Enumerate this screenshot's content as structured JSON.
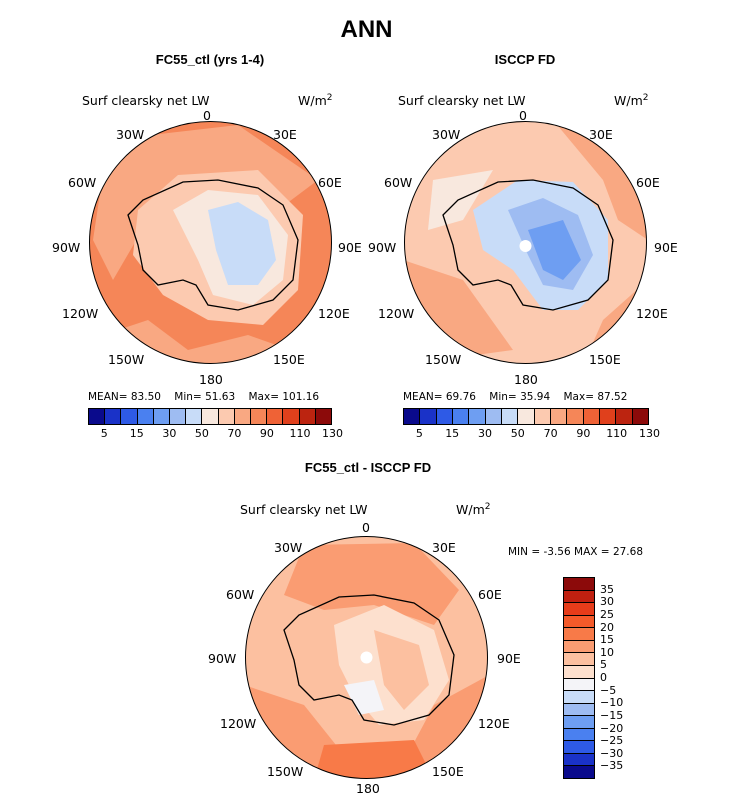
{
  "title": "ANN",
  "panels": [
    {
      "title": "FC55_ctl (yrs 1-4)",
      "variable": "Surf clearsky net LW",
      "units": "W/m",
      "units_exp": "2",
      "stats": {
        "mean_label": "MEAN=",
        "mean": "83.50",
        "min_label": "Min=",
        "min": "51.63",
        "max_label": "Max=",
        "max": "101.16"
      }
    },
    {
      "title": "ISCCP FD",
      "variable": "Surf clearsky net LW",
      "units": "W/m",
      "units_exp": "2",
      "stats": {
        "mean_label": "MEAN=",
        "mean": "69.76",
        "min_label": "Min=",
        "min": "35.94",
        "max_label": "Max=",
        "max": "87.52"
      }
    },
    {
      "title": "FC55_ctl - ISCCP FD",
      "variable": "Surf clearsky net LW",
      "units": "W/m",
      "units_exp": "2",
      "stats": {
        "min_label": "MIN =",
        "min": "-3.56",
        "max_label": "MAX =",
        "max": "27.68"
      }
    }
  ],
  "lon_labels": {
    "n": "0",
    "ne1": "30E",
    "ne2": "60E",
    "e": "90E",
    "se1": "120E",
    "se2": "150E",
    "s": "180",
    "sw2": "150W",
    "sw1": "120W",
    "w": "90W",
    "nw2": "60W",
    "nw1": "30W"
  },
  "colorbar_abs": {
    "colors": [
      "#0a0a8c",
      "#1a32c8",
      "#2e5ae6",
      "#4a80f0",
      "#6e9ef2",
      "#9ebcf2",
      "#c8dcf8",
      "#f8e8de",
      "#fccab0",
      "#f9a882",
      "#f58658",
      "#ef6236",
      "#e0401c",
      "#bc2410",
      "#8c0a0a"
    ],
    "ticks": [
      "5",
      "15",
      "30",
      "50",
      "70",
      "90",
      "110",
      "130"
    ]
  },
  "colorbar_diff": {
    "colors": [
      "#8c0a0a",
      "#c02010",
      "#e63c1a",
      "#f45a2a",
      "#f87a48",
      "#fa9c72",
      "#fcc0a0",
      "#fde0ce",
      "#f4f4f8",
      "#c8dcf8",
      "#9ebcf2",
      "#6e9ef2",
      "#4a80f0",
      "#2e5ae6",
      "#1a32c8",
      "#0a0a8c"
    ],
    "ticks": [
      "35",
      "30",
      "25",
      "20",
      "15",
      "10",
      "5",
      "0",
      "−5",
      "−10",
      "−15",
      "−20",
      "−25",
      "−30",
      "−35"
    ]
  }
}
